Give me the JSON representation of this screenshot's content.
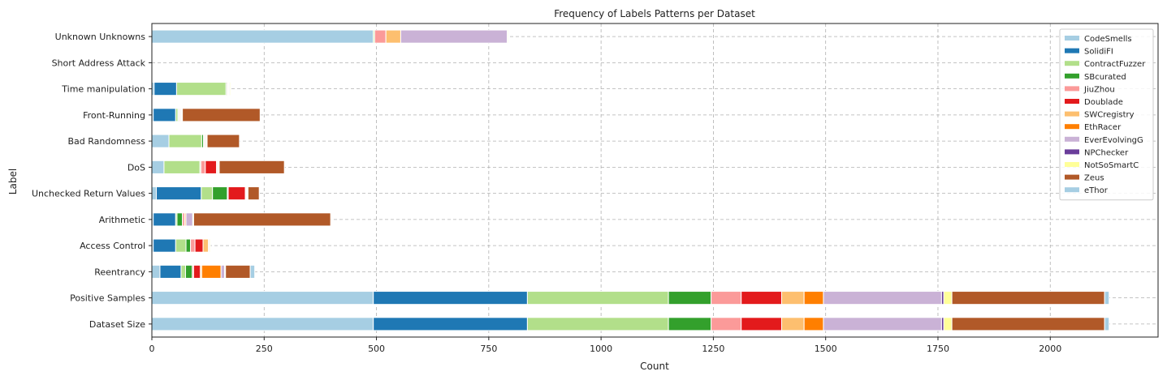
{
  "chart_data": {
    "type": "bar",
    "orientation": "horizontal",
    "stacked": true,
    "title": "Frequency of Labels Patterns per Dataset",
    "xlabel": "Count",
    "ylabel": "Label",
    "xlim": [
      0,
      2240
    ],
    "xticks": [
      0,
      250,
      500,
      750,
      1000,
      1250,
      1500,
      1750,
      2000
    ],
    "grid": true,
    "legend_position": "top-right",
    "categories": [
      "Unknown Unknowns",
      "Short Address Attack",
      "Time manipulation",
      "Front-Running",
      "Bad Randomness",
      "DoS",
      "Unchecked Return Values",
      "Arithmetic",
      "Access Control",
      "Reentrancy",
      "Positive Samples",
      "Dataset Size"
    ],
    "series": [
      {
        "name": "CodeSmells",
        "color": "#a6cee3",
        "values": [
          493,
          0,
          5,
          3,
          38,
          27,
          10,
          3,
          3,
          18,
          493,
          493
        ]
      },
      {
        "name": "SolidiFI",
        "color": "#1f78b4",
        "values": [
          0,
          0,
          50,
          50,
          0,
          0,
          100,
          50,
          50,
          47,
          343,
          343
        ]
      },
      {
        "name": "ContractFuzzer",
        "color": "#b2df8a",
        "values": [
          3,
          0,
          110,
          5,
          73,
          80,
          25,
          3,
          23,
          10,
          314,
          314
        ]
      },
      {
        "name": "SBcurated",
        "color": "#33a02c",
        "values": [
          0,
          0,
          2,
          2,
          4,
          2,
          33,
          12,
          10,
          15,
          95,
          95
        ]
      },
      {
        "name": "JiuZhou",
        "color": "#fb9a99",
        "values": [
          25,
          0,
          2,
          2,
          2,
          10,
          2,
          5,
          10,
          3,
          67,
          67
        ]
      },
      {
        "name": "Doublade",
        "color": "#e31a1c",
        "values": [
          0,
          0,
          0,
          0,
          0,
          25,
          38,
          0,
          18,
          15,
          90,
          90
        ]
      },
      {
        "name": "SWCregistry",
        "color": "#fdbf6f",
        "values": [
          33,
          0,
          2,
          2,
          2,
          2,
          2,
          3,
          12,
          3,
          50,
          50
        ]
      },
      {
        "name": "EthRacer",
        "color": "#ff7f00",
        "values": [
          0,
          0,
          0,
          0,
          0,
          0,
          0,
          0,
          0,
          43,
          43,
          43
        ]
      },
      {
        "name": "EverEvolvingG",
        "color": "#cab2d6",
        "values": [
          237,
          0,
          2,
          2,
          2,
          2,
          2,
          15,
          2,
          8,
          263,
          263
        ]
      },
      {
        "name": "NPChecker",
        "color": "#6a3d9a",
        "values": [
          0,
          0,
          0,
          0,
          0,
          0,
          0,
          0,
          0,
          0,
          5,
          5
        ]
      },
      {
        "name": "NotSoSmartC",
        "color": "#ffff99",
        "values": [
          2,
          0,
          2,
          2,
          2,
          2,
          2,
          2,
          2,
          2,
          18,
          18
        ]
      },
      {
        "name": "Zeus",
        "color": "#b15928",
        "values": [
          0,
          0,
          0,
          173,
          72,
          145,
          25,
          305,
          0,
          55,
          340,
          340
        ]
      },
      {
        "name": "eThor",
        "color": "#a6cee3",
        "values": [
          0,
          0,
          0,
          0,
          0,
          0,
          0,
          0,
          0,
          10,
          10,
          10
        ]
      }
    ]
  }
}
